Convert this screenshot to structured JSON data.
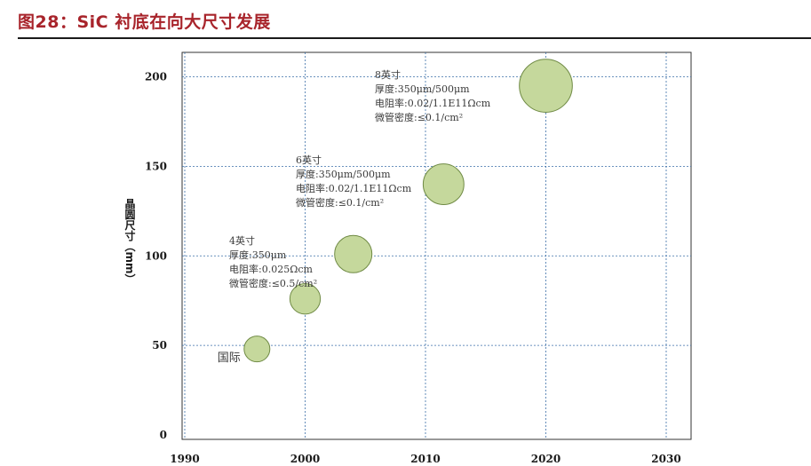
{
  "figure": {
    "title": "图28：SiC 衬底在向大尺寸发展"
  },
  "chart_data": {
    "type": "scatter",
    "subtype": "bubble",
    "title": "",
    "xlabel": "",
    "ylabel": "晶圆尺寸（mm）",
    "xlim": [
      1990,
      2030
    ],
    "ylim": [
      0,
      230
    ],
    "xticks": [
      1990,
      2000,
      2010,
      2020,
      2030
    ],
    "yticks": [
      0,
      50,
      100,
      150,
      200
    ],
    "grid": "dotted",
    "bubble_color": "#c5d89c",
    "bubble_edge": "#6f8a44",
    "grid_color": "#3b6fa8",
    "points": [
      {
        "x": 1996,
        "y": 48,
        "size": 1,
        "label": "国际"
      },
      {
        "x": 2000,
        "y": 76,
        "size": 1.4
      },
      {
        "x": 2004,
        "y": 101,
        "size": 2.1
      },
      {
        "x": 2011.5,
        "y": 140,
        "size": 2.5
      },
      {
        "x": 2020,
        "y": 195,
        "size": 3.2
      }
    ],
    "annotations": [
      {
        "lines": [
          "4英寸",
          "厚度:350μm",
          "电阻率:0.025Ωcm",
          "微管密度:≤0.5/cm²"
        ]
      },
      {
        "lines": [
          "6英寸",
          "厚度:350μm/500μm",
          "电阻率:0.02/1.1E11Ωcm",
          "微管密度:≤0.1/cm²"
        ]
      },
      {
        "lines": [
          "8英寸",
          "厚度:350μm/500μm",
          "电阻率:0.02/1.1E11Ωcm",
          "微管密度:≤0.1/cm²"
        ]
      }
    ]
  }
}
